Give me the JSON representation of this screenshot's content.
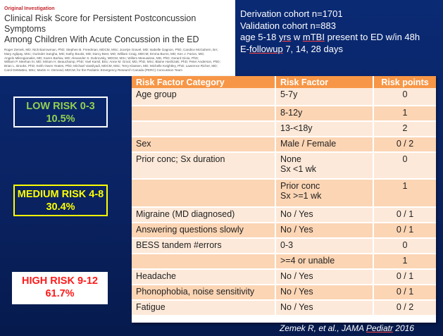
{
  "paper": {
    "label": "Original Investigation",
    "title_line1": "Clinical Risk Score for Persistent Postconcussion Symptoms",
    "title_line2": "Among Children With Acute Concussion in the ED",
    "authors": [
      "Roger Zemek, MD; Nick Barrowman, PhD; Stephen B. Freedman, MDCM, MSc; Jocelyn Gravel, MD; Isabelle Gagnon, PhD; Candice McGahern, BA;",
      "Mary Aglipay, MSc; Gurinder Sangha, MD; Kathy Boutis, MD; Darcy Beer, MD; William Craig, MDCM; Emma Burns, MD; Ken J. Farion, MD;",
      "Angelo Mikrogianakis, MD; Karen Barlow, MD; Alexander S. Dubrovsky, MDCM, MSc; Willem Meeuwisse, MD, PhD; Gerard Gioia, PhD;",
      "William P. Meehan III, MD; Miriam H. Beauchamp, PhD; Yael Kamil, BSc; Anne M. Grool, MD, PhD, MSc; Blaine Hoshizaki, PhD; Peter Anderson, PhD;",
      "Brian L. Brooks, PhD; Keith Owen Yeates, PhD; Michael Vassilyadi, MDCM, MSc; Terry Klassen, MD; Michelle Keightley, PhD; Lawrence Richer, MD;",
      "Carol DeMatteo, MSc; Martin H. Osmond, MDCM; for the Pediatric Emergency Research Canada (PERC) Concussion Team"
    ]
  },
  "cohort": {
    "derivation": "Derivation cohort n=1701",
    "validation": "Validation cohort n=883",
    "age_pre": "age 5-18 ",
    "age_yrs": "yrs",
    "age_w": " w ",
    "age_mtbi": "mTBI",
    "age_post": " present to ED w/in 48h",
    "followup_pre": "E-",
    "followup_u": "followup",
    "followup_post": " 7, 14, 28 days"
  },
  "risk_groups": {
    "low_label": "LOW RISK 0-3",
    "low_pct": "10.5%",
    "medium_label": "MEDIUM RISK 4-8",
    "medium_pct": "30.4%",
    "high_label": "HIGH RISK 9-12",
    "high_pct": "61.7%"
  },
  "table": {
    "headers": [
      "Risk Factor Category",
      "Risk Factor",
      "Risk points"
    ],
    "rows": [
      {
        "category": "Age group",
        "factor": "5-7y",
        "points": "0"
      },
      {
        "category": "",
        "factor": "8-12y",
        "points": "1"
      },
      {
        "category": "",
        "factor": "13-<18y",
        "points": "2"
      },
      {
        "category": "Sex",
        "factor": "Male / Female",
        "points": "0 / 2"
      },
      {
        "category": "Prior conc; Sx duration",
        "factor": "None",
        "factor2": "Sx <1 wk",
        "points": "0"
      },
      {
        "category": "",
        "factor": "Prior conc",
        "factor2": "Sx >=1 wk",
        "points": "1"
      },
      {
        "category": "Migraine (MD diagnosed)",
        "factor": "No / Yes",
        "points": "0 / 1"
      },
      {
        "category": "Answering questions slowly",
        "factor": "No / Yes",
        "points": "0 / 1"
      },
      {
        "category": "BESS tandem #errors",
        "factor": "0-3",
        "points": "0"
      },
      {
        "category": "",
        "factor": ">=4 or unable",
        "points": "1"
      },
      {
        "category": "Headache",
        "factor": "No / Yes",
        "points": "0 / 1"
      },
      {
        "category": "Phonophobia, noise sensitivity",
        "factor": "No / Yes",
        "points": "0 / 1"
      },
      {
        "category": "Fatigue",
        "factor": "No / Yes",
        "points": "0 / 2"
      }
    ]
  },
  "citation": {
    "pre": "Zemek R, et al., JAMA ",
    "u": "Pediatr",
    "post": " 2016"
  }
}
